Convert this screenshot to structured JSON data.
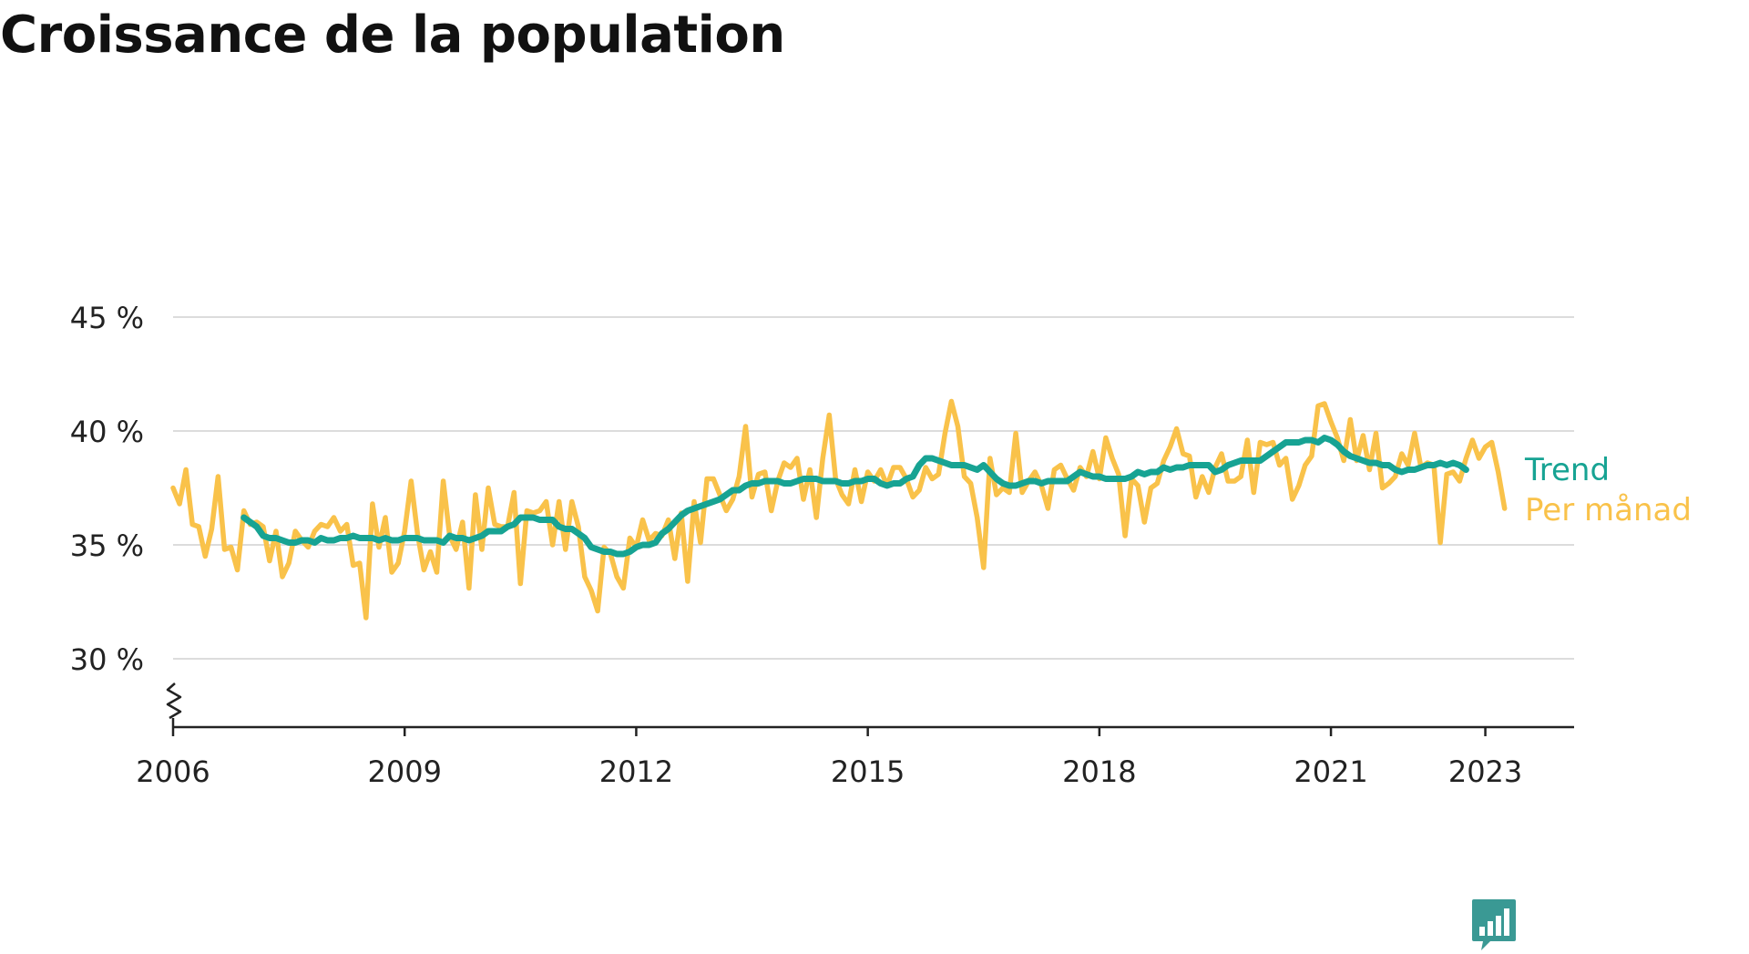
{
  "title": "Croissance de la population",
  "chart_data": {
    "type": "line",
    "title": "Croissance de la population",
    "subtitle": "",
    "ylim": [
      27,
      45
    ],
    "yticks": [
      30,
      35,
      40,
      45
    ],
    "ytick_labels": [
      "30 %",
      "35 %",
      "40 %",
      "45 %"
    ],
    "y_axis_break": true,
    "xticks": [
      2006,
      2009,
      2012,
      2015,
      2018,
      2021,
      2023
    ],
    "xtick_labels": [
      "2006",
      "2009",
      "2012",
      "2015",
      "2018",
      "2021",
      "2023"
    ],
    "grid": "horizontal",
    "legend": "direct labels at right end of lines",
    "series": [
      {
        "name": "Per månad",
        "color": "#f9c24a",
        "x_start": "2006-01",
        "frequency": "monthly",
        "values": [
          37.5,
          36.8,
          38.3,
          35.9,
          35.8,
          34.5,
          35.7,
          38.0,
          34.8,
          34.9,
          33.9,
          36.5,
          35.9,
          36.0,
          35.8,
          34.3,
          35.6,
          33.6,
          34.2,
          35.6,
          35.2,
          34.9,
          35.6,
          35.9,
          35.8,
          36.2,
          35.6,
          35.9,
          34.1,
          34.2,
          31.8,
          36.8,
          34.9,
          36.2,
          33.8,
          34.2,
          35.6,
          37.8,
          35.5,
          33.9,
          34.7,
          33.8,
          37.8,
          35.4,
          34.8,
          36.0,
          33.1,
          37.2,
          34.8,
          37.5,
          35.9,
          35.8,
          35.8,
          37.3,
          33.3,
          36.5,
          36.4,
          36.5,
          36.9,
          35.0,
          36.9,
          34.8,
          36.9,
          35.8,
          33.6,
          33.0,
          32.1,
          34.9,
          34.6,
          33.6,
          33.1,
          35.3,
          34.9,
          36.1,
          35.2,
          35.5,
          35.4,
          36.1,
          34.4,
          36.4,
          33.4,
          36.9,
          35.1,
          37.9,
          37.9,
          37.2,
          36.5,
          37.0,
          38.0,
          40.2,
          37.1,
          38.1,
          38.2,
          36.5,
          37.8,
          38.6,
          38.4,
          38.8,
          37.0,
          38.3,
          36.2,
          38.8,
          40.7,
          37.9,
          37.2,
          36.8,
          38.3,
          36.9,
          38.2,
          37.8,
          38.3,
          37.6,
          38.4,
          38.4,
          37.9,
          37.1,
          37.4,
          38.4,
          37.9,
          38.1,
          39.9,
          41.3,
          40.2,
          38.0,
          37.7,
          36.2,
          34.0,
          38.8,
          37.2,
          37.5,
          37.3,
          39.9,
          37.3,
          37.8,
          38.2,
          37.6,
          36.6,
          38.3,
          38.5,
          37.9,
          37.4,
          38.4,
          38.0,
          39.1,
          37.9,
          39.7,
          38.8,
          38.1,
          35.4,
          37.9,
          37.6,
          36.0,
          37.5,
          37.7,
          38.7,
          39.3,
          40.1,
          39.0,
          38.9,
          37.1,
          38.0,
          37.3,
          38.4,
          39.0,
          37.8,
          37.8,
          38.0,
          39.6,
          37.3,
          39.5,
          39.4,
          39.5,
          38.5,
          38.8,
          37.0,
          37.6,
          38.5,
          38.9,
          41.1,
          41.2,
          40.4,
          39.7,
          38.7,
          40.5,
          38.7,
          39.8,
          38.3,
          39.9,
          37.5,
          37.7,
          38.0,
          39.0,
          38.5,
          39.9,
          38.4,
          38.6,
          38.5,
          35.1,
          38.1,
          38.2,
          37.8,
          38.8,
          39.6,
          38.8,
          39.3,
          39.5,
          38.2,
          36.6
        ]
      },
      {
        "name": "Trend",
        "color": "#17a393",
        "x_start": "2006-12",
        "frequency": "monthly",
        "values": [
          36.2,
          36.0,
          35.8,
          35.4,
          35.3,
          35.3,
          35.2,
          35.1,
          35.1,
          35.2,
          35.2,
          35.1,
          35.3,
          35.2,
          35.2,
          35.3,
          35.3,
          35.4,
          35.3,
          35.3,
          35.3,
          35.2,
          35.3,
          35.2,
          35.2,
          35.3,
          35.3,
          35.3,
          35.2,
          35.2,
          35.2,
          35.1,
          35.4,
          35.3,
          35.3,
          35.2,
          35.3,
          35.4,
          35.6,
          35.6,
          35.6,
          35.8,
          35.9,
          36.2,
          36.2,
          36.2,
          36.1,
          36.1,
          36.1,
          35.8,
          35.7,
          35.7,
          35.5,
          35.3,
          34.9,
          34.8,
          34.7,
          34.7,
          34.6,
          34.6,
          34.7,
          34.9,
          35.0,
          35.0,
          35.1,
          35.5,
          35.7,
          36.0,
          36.3,
          36.5,
          36.6,
          36.7,
          36.8,
          36.9,
          37.0,
          37.2,
          37.4,
          37.4,
          37.6,
          37.7,
          37.7,
          37.8,
          37.8,
          37.8,
          37.7,
          37.7,
          37.8,
          37.9,
          37.9,
          37.9,
          37.8,
          37.8,
          37.8,
          37.7,
          37.7,
          37.8,
          37.8,
          37.9,
          37.9,
          37.7,
          37.6,
          37.7,
          37.7,
          37.9,
          38.0,
          38.5,
          38.8,
          38.8,
          38.7,
          38.6,
          38.5,
          38.5,
          38.5,
          38.4,
          38.3,
          38.5,
          38.2,
          37.9,
          37.7,
          37.6,
          37.6,
          37.7,
          37.8,
          37.8,
          37.7,
          37.8,
          37.8,
          37.8,
          37.8,
          38.0,
          38.2,
          38.1,
          38.0,
          38.0,
          37.9,
          37.9,
          37.9,
          37.9,
          38.0,
          38.2,
          38.1,
          38.2,
          38.2,
          38.4,
          38.3,
          38.4,
          38.4,
          38.5,
          38.5,
          38.5,
          38.5,
          38.2,
          38.3,
          38.5,
          38.6,
          38.7,
          38.7,
          38.7,
          38.7,
          38.9,
          39.1,
          39.3,
          39.5,
          39.5,
          39.5,
          39.6,
          39.6,
          39.5,
          39.7,
          39.6,
          39.4,
          39.1,
          38.9,
          38.8,
          38.7,
          38.6,
          38.6,
          38.5,
          38.5,
          38.3,
          38.2,
          38.3,
          38.3,
          38.4,
          38.5,
          38.5,
          38.6,
          38.5,
          38.6,
          38.5,
          38.3
        ]
      }
    ]
  },
  "brand": {
    "icon": "bar-chart-speech-icon",
    "name": ""
  }
}
